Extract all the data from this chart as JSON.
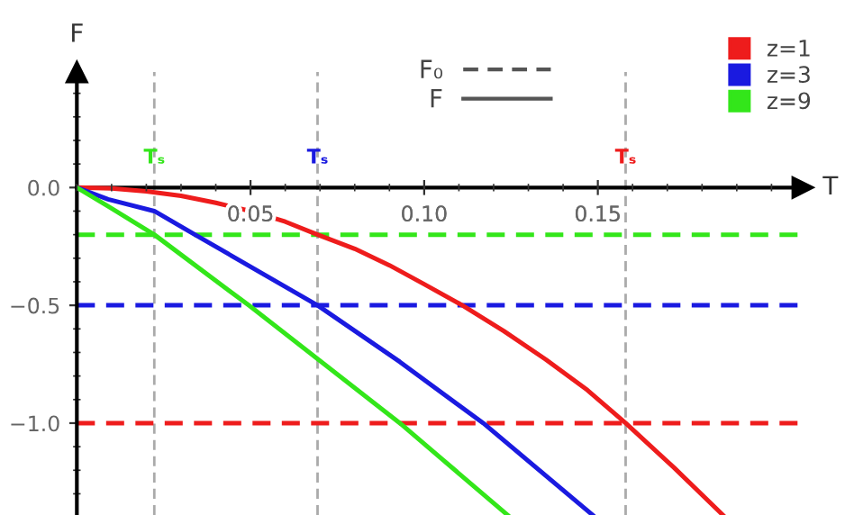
{
  "chart_data": {
    "type": "line",
    "xlabel": "T",
    "ylabel": "F",
    "series": [
      {
        "name": "z=1",
        "color": "#ee1c1c",
        "x": [
          0,
          0.01,
          0.02,
          0.03,
          0.04,
          0.05,
          0.06,
          0.0693,
          0.08,
          0.09,
          0.1,
          0.111,
          0.123,
          0.135,
          0.147,
          0.158,
          0.172,
          0.186
        ],
        "values": [
          0,
          -0.004,
          -0.016,
          -0.035,
          -0.065,
          -0.1,
          -0.145,
          -0.2,
          -0.26,
          -0.33,
          -0.41,
          -0.5,
          -0.61,
          -0.73,
          -0.86,
          -1.0,
          -1.19,
          -1.39
        ]
      },
      {
        "name": "z=3",
        "color": "#1a1ae0",
        "x": [
          0,
          0.009,
          0.0223,
          0.034,
          0.0693,
          0.093,
          0.117,
          0.1485
        ],
        "values": [
          0,
          -0.05,
          -0.1,
          -0.2,
          -0.5,
          -0.74,
          -1.0,
          -1.39
        ]
      },
      {
        "name": "z=9",
        "color": "#33e61a",
        "x": [
          0,
          0.009,
          0.0223,
          0.0495,
          0.093,
          0.124
        ],
        "values": [
          0,
          -0.08,
          -0.2,
          -0.5,
          -1.0,
          -1.39
        ]
      }
    ],
    "ref_lines": [
      {
        "axis": "y",
        "value": -1.0,
        "color": "#ee1c1c",
        "line_style": "dashed"
      },
      {
        "axis": "y",
        "value": -0.5,
        "color": "#1a1ae0",
        "line_style": "dashed"
      },
      {
        "axis": "y",
        "value": -0.2,
        "color": "#33e61a",
        "line_style": "dashed"
      },
      {
        "axis": "x",
        "value": 0.158,
        "label": "Tₛ",
        "color": "#aaaaaa"
      },
      {
        "axis": "x",
        "value": 0.0693,
        "label": "Tₛ",
        "color": "#aaaaaa"
      },
      {
        "axis": "x",
        "value": 0.0223,
        "label": "Tₛ",
        "color": "#aaaaaa"
      }
    ],
    "annotations": [
      "F₀",
      "F"
    ],
    "xlim": [
      0,
      0.209
    ],
    "ylim": [
      -1.39,
      0.49
    ],
    "xticks": [
      0.05,
      {
        "value": 0.1,
        "label": "0.10"
      },
      0.15
    ],
    "yticks": [
      {
        "value": 0,
        "label": "0.0"
      },
      {
        "value": -0.5,
        "label": "−0.5"
      },
      {
        "value": -1.0,
        "label": "−1.0"
      }
    ],
    "grid": false,
    "legend": "top right",
    "line_style": "solid",
    "marker": "none"
  }
}
